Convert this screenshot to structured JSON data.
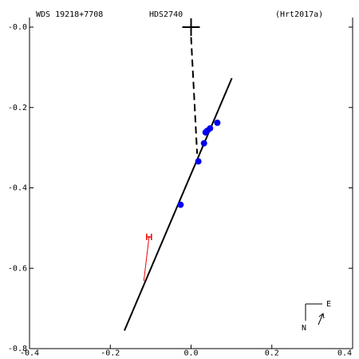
{
  "header": {
    "wds": "WDS 19218+7708",
    "hds": "HDS2740",
    "ref": "(Hrt2017a)"
  },
  "compass": {
    "east": "E",
    "north": "N"
  },
  "chart_data": {
    "type": "scatter",
    "title": "",
    "xlabel": "",
    "ylabel": "",
    "xlim": [
      -0.4,
      0.4
    ],
    "ylim": [
      -0.8,
      0.0
    ],
    "x_ticks": [
      {
        "value": -0.4,
        "label": "-0.4"
      },
      {
        "value": -0.2,
        "label": "-0.2"
      },
      {
        "value": 0.0,
        "label": "0.0"
      },
      {
        "value": 0.2,
        "label": "0.2"
      },
      {
        "value": 0.4,
        "label": "0.4"
      }
    ],
    "y_ticks": [
      {
        "value": 0.0,
        "label": "-0.0"
      },
      {
        "value": -0.2,
        "label": "-0.2"
      },
      {
        "value": -0.4,
        "label": "-0.4"
      },
      {
        "value": -0.6,
        "label": "-0.6"
      },
      {
        "value": -0.8,
        "label": "-0.8"
      }
    ],
    "primary": {
      "x": 0.0,
      "y": 0.0
    },
    "motion_line": {
      "start": {
        "x": -0.165,
        "y": -0.755
      },
      "end": {
        "x": 0.101,
        "y": -0.127
      }
    },
    "separation_line": {
      "start": {
        "x": 0.0,
        "y": -0.025
      },
      "end": {
        "x": 0.015,
        "y": -0.315
      }
    },
    "observations": [
      {
        "x": 0.065,
        "y": -0.238
      },
      {
        "x": 0.047,
        "y": -0.252
      },
      {
        "x": 0.04,
        "y": -0.258
      },
      {
        "x": 0.036,
        "y": -0.262
      },
      {
        "x": 0.032,
        "y": -0.289
      },
      {
        "x": 0.018,
        "y": -0.334
      },
      {
        "x": -0.026,
        "y": -0.442
      }
    ],
    "outlier": {
      "marker": "H",
      "point": {
        "x": -0.104,
        "y": -0.522
      },
      "connector_end": {
        "x": -0.117,
        "y": -0.632
      }
    },
    "colors": {
      "axes": "#000000",
      "observations": "#0000ee",
      "outlier": "#ee0000",
      "line": "#000000"
    }
  }
}
